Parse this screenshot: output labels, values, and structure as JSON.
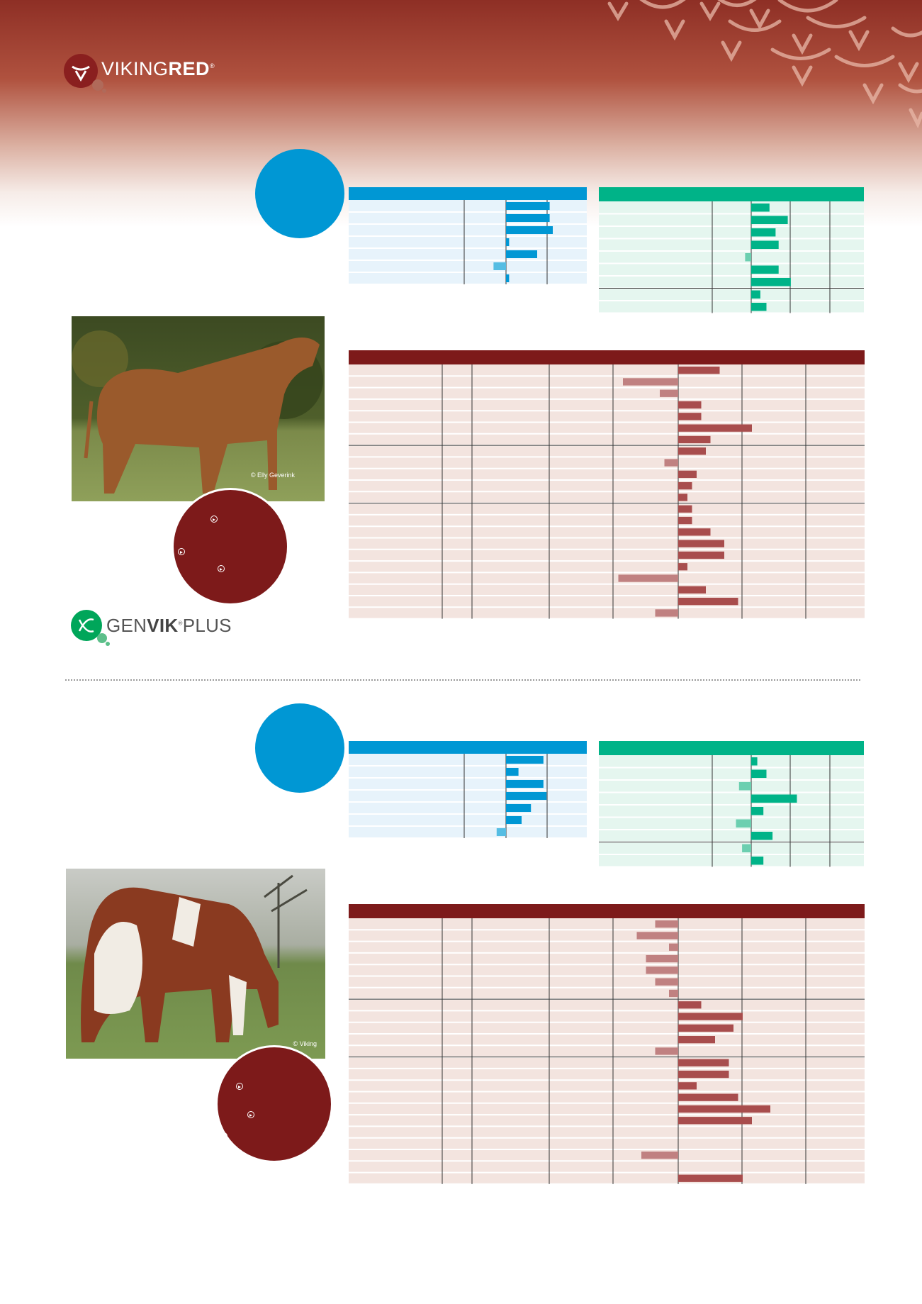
{
  "brand": {
    "logo_text_1": "VIKING",
    "logo_text_2": "RED",
    "registered": "®"
  },
  "genvik": {
    "text_1": "GEN",
    "text_2": "VIK",
    "text_3": "PLUS",
    "registered": "®"
  },
  "photo1": {
    "credit": "© Elly Geverink"
  },
  "photo2": {
    "credit": "© Viking"
  },
  "colors": {
    "blue": "#0097d4",
    "green": "#00b388",
    "red": "#7d1a1a",
    "bar_red": "#a84d4d"
  },
  "chart_data": [
    {
      "id": "bull1-blue",
      "type": "bar",
      "values": [
        14,
        14,
        15,
        1,
        10,
        -4,
        1
      ]
    },
    {
      "id": "bull1-green",
      "type": "bar",
      "values": [
        6,
        12,
        8,
        9,
        -2,
        9,
        13,
        3,
        5
      ]
    },
    {
      "id": "bull1-red",
      "type": "bar",
      "values": [
        9,
        -12,
        -4,
        5,
        5,
        16,
        7,
        6,
        -3,
        4,
        3,
        2,
        3,
        3,
        7,
        10,
        10,
        2,
        -13,
        6,
        13,
        -5
      ]
    },
    {
      "id": "bull2-blue",
      "type": "bar",
      "values": [
        12,
        4,
        12,
        13,
        8,
        5,
        -3
      ]
    },
    {
      "id": "bull2-green",
      "type": "bar",
      "values": [
        2,
        5,
        -4,
        15,
        4,
        -5,
        7,
        -3,
        4
      ]
    },
    {
      "id": "bull2-red",
      "type": "bar",
      "values": [
        -5,
        -9,
        -2,
        -7,
        -7,
        -5,
        -2,
        5,
        14,
        12,
        8,
        -5,
        11,
        11,
        4,
        13,
        20,
        16,
        0,
        0,
        -8,
        0,
        14
      ]
    }
  ]
}
